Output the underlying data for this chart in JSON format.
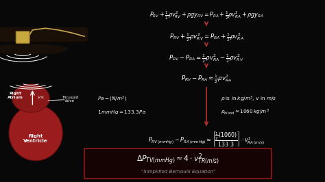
{
  "bg_color": "#080808",
  "text_color": "#ffffff",
  "red_color": "#b03030",
  "gold_color": "#c8a850",
  "gray_text": "#aaaaaa",
  "fig_w": 4.74,
  "fig_h": 2.66,
  "dpi": 100,
  "eq1": "$P_{RV} + \\frac{1}{2}\\rho v_{RV}^{2} + \\rho gy_{RV} = P_{RA} + \\frac{1}{2}\\rho v_{RA}^{2} + \\rho gy_{RA}$",
  "eq2": "$P_{RV} + \\frac{1}{2}\\rho v_{RV}^{2} = P_{RA} + \\frac{1}{2}\\rho v_{RA}^{2}$",
  "eq3": "$P_{RV} - P_{RA} = \\frac{1}{2}\\rho v_{RA}^{2} - \\frac{1}{2}\\rho v_{RV}^{2}$",
  "eq4": "$P_{RV} - P_{RA} \\approx \\frac{1}{2}\\rho v_{RA}^{2}$",
  "eq5": "$P_{RV\\,(mmHg)} - P_{RA\\,(mmHg)} \\approx \\left[\\dfrac{\\frac{1}{2}(1060)}{133.3}\\right] \\cdot v_{RA\\,(m/s)}^{2}$",
  "final_eq": "$\\Delta P_{TV(mmHg)} \\approx 4 \\cdot v_{TR(m/s)}^{2}$",
  "final_sub": "\"Simplified Bernoulli Equation\"",
  "note1": "$Pa = (N/m^{2})$",
  "note2": "$1\\,mmHg = 133.3\\,Pa$",
  "note3": "$\\rho$ is in $kg/m^{3}$, v in $m/s$",
  "note4": "$\\rho_{blood} \\approx 1060\\,kg/m^{3}$"
}
